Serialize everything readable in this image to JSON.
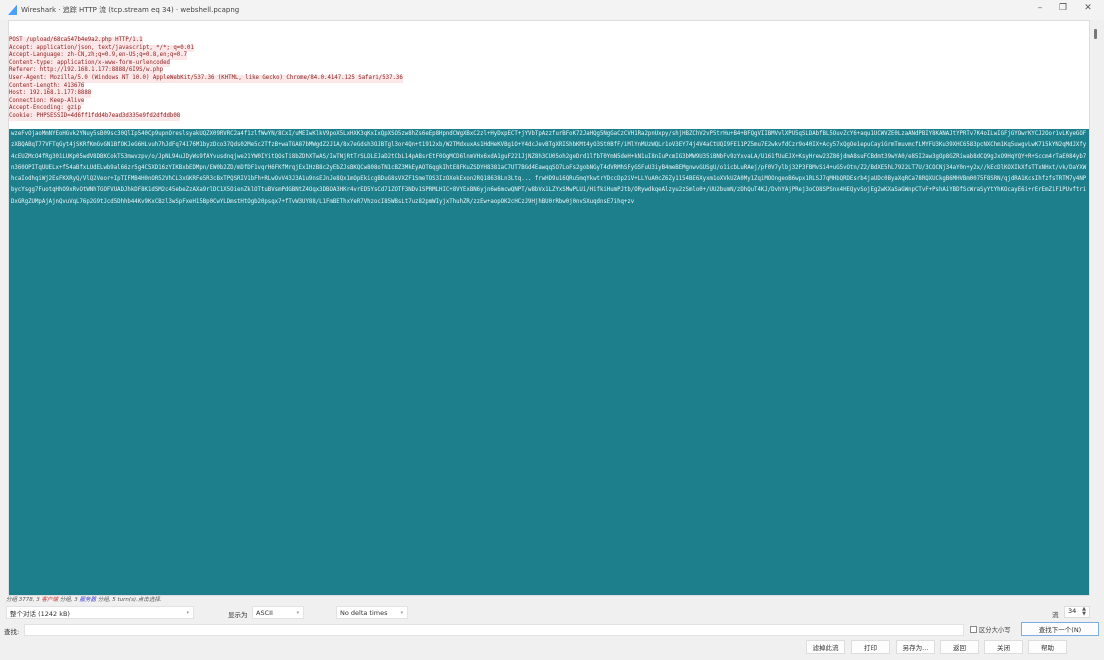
{
  "window": {
    "title": "Wireshark · 追踪 HTTP 流 (tcp.stream eq 34) · webshell.pcapng",
    "icon": "wireshark-fin-icon"
  },
  "request_headers": [
    "POST /upload/68ca547b4e9a2.php HTTP/1.1",
    "Accept: application/json, text/javascript, */*; q=0.01",
    "Accept-Language: zh-CN,zh;q=0.9,en-US;q=0.8,en;q=0.7",
    "Content-type: application/x-www-form-urlencoded",
    "Referer: http://192.168.1.177:8888/6I9S/w.php",
    "User-Agent: Mozilla/5.0 (Windows NT 10.0) AppleWebKit/537.36 (KHTML, like Gecko) Chrome/84.0.4147.125 Safari/537.36",
    "Content-Length: 413676",
    "Host: 192.168.1.177:8888",
    "Connection: Keep-Alive",
    "Accept-Encoding: gzip",
    "Cookie: PHPSESSID=4d6ff1fdd4b7ead3d335e9fd2dfddb08"
  ],
  "request_body": "wzeFvOjaoMmNYEoHGvk2YNuy5sB09sc30QlIp540Cp9upnOreslsyakUQZX09RVRC2a4f1zlfWwYN/8CxI/uMEIwKlkV9poX5LxHXK3qKxIxQpXSO5zw8hZs6eEp8HpndCWgXBxC2zl+HyDxpECT+jYVbTpAzzfurBFoK72JaHQg5NgGaCzCVH1Ra2pnUxpy/shjHBZChV2vP5trHu+B4+BFQgVIIBMVvlXPU5qSLDAbfBL5OuvZcY6+aqu1UCWVZE0LzaANdPBIY8KANAJtYPRTv7K4oILwIGFjGYOwrKYCJ2Oor1vLKyeGOFzXBQABqT77VFTqGyt4jSKRfKmGvGN1BfOKJeG6HLvuh7hJdFq74176M1byzDco37Qds02Me5c2TfzB+waTGA87bMWgdZ2J1A/8x7eGdsh3OJBTgl3or4Qn+t1912xb/W2TMdxuxAs1HdHeKVBg1O+Y4dcJevBTgXRIShbKMt4yO3St0BfF/iMlYnMUzWQLr1oV3EY74j4V4aCtUQI9FE11PZ5mu7E2wkvfdCzr9o40IX+Acy57xQgOe1epuCayiGrmTmuvmcfLMYFU3Ku39XHC6583pcNXChm1Kq5uwgvLwK715kYN2qMdJXfy4cEUZMcO4fRg301LUKp05wdV8DBKCokT53mwvzpv/o/JpNL94uJDyWs9fAYvusdnqjwe21YW0IYitQOsTi8bZDhXTwAS/IwTNjRtTrSLDLEJaD2tCbL14pABsrEtF0OgMCD6lnmVHx6xdA1guF221JjNZ8h3CU05oh2geDrd1lfbT0YmN5deH+kN1uI8nIuPcmIG3bMW9U35iBNbFv9zYxvaLA/U161fUuEJX+KsyHrew23Z86jdmA8suFCBdmt39wYA0/e85I2aw3gOp8GZRiwab8dCQ9gJxO9HqYQY+R+Sccm4rTaE084yb7n360OPITqUUELx+f54aBfxLUdELwb9al66zr5g4C5XD16zYIKBxbEDMpn/EW0b2ZD/mDfDF1vqrH6FKfMrqjExIHzB8c2yEbZJsBKQCw808oTN1cBZ3MkEyAOT6qgkIhtE8FKuZSDYH8381aC7UT7BGd4EawqqSO7LoFs2gobNGyT4dVRMhSFyGSFuU3iyB4meBEMgnwvGUSgU/o1icbLuRAej/pF0V7ylbj32P3FBMvSi4+uG5vOtn/Z2/BdXE5hL7922LT7U/3COCNj34aY0n+y2x//kEcDlKOXIkXfsTTxNHxt/vk/DaYXWhcaIodhqiWj2EsFKXRyQ/VlQ2Veor+IpTIFMB4H0nOR52VhCL3xGKRFe5R3cBxTPQSRIV1bFh+RLwOvV43J3A1u9nsEJnJe8Qx1mOpEkicgBDuG8sVXZF1SmeTOS3IzOXekExon2RQ18638Ln3Ltq... frwHD9u16QRu5mqYkwtrYDccDp2iV+LLYuA0cZ6Zy1154BE6Xyxm1oXVkUZA0My1ZqiMOOngeoB6wpx1RLSJ7qMHbQRDEsrb4jaUDc0ByaXqRCa78RQXUCkgB6MHVBm0075F8SRN/qjdRA1KcsIhfzfsTRTM7y4NPbycYsgg7FuotqHhO9xRvOtWNhTGOFVUADJhkDF8K1dSM2c45ebeZzAXa9rlDC1X5OienZklOTtuBVsmPdGBNtZ4Oqx3DBOA3HKr4vrED5YsCd71ZOTF3NDv1SPRMLHIC+8VYExBN6yjn6w6mcwQNPT/w8bVx1LZYxSMwPLUi/HifkiHumPJtb/ORywdkqeAlzyu2zSmlo0+/UU2bumN/zDhQuT4KJ/DvhYAjPRej3oCO8SPSnx4HEQyvSojEg2wKXaSaGWnpCTvF+PshAiYBDfScWraSyYtYhKOcayE6i+rErEmZiF1PUvftriDxGRgZUMpAjAjnQvuVqL76p2G9tJcd5Dhhb44Kv9KxCBzl3wSpFxeH15Bp0CwYLDmstHtOgb20psqx7+fTvW3UY88/L1FmBEThxYeR7VhzocI85WBsLt7uz82pmWIyjxThuhZR/zzEw+aopOK2cHCzJ9HjhBU0rRbw0j0nvSXuqdnsE7ihq+zv",
  "status": {
    "packets_prefix": "分组 3778,",
    "client_count": "3",
    "client_label": "客户端",
    "client_suffix": "分组,",
    "server_count": "3",
    "server_label": "服务器",
    "server_suffix": "分组,",
    "turns": "5 turn(s).点击选择."
  },
  "controls": {
    "conversation_select": "整个对话 (1242 kB)",
    "show_as_label": "显示为",
    "show_as_select": "ASCII",
    "delta_select": "No delta times",
    "stream_label": "流",
    "stream_value": "34",
    "find_label": "查找:",
    "find_value": "",
    "case_label": "区分大小写",
    "find_next": "查找下一个(N)"
  },
  "buttons": {
    "filter_out": "滤掉此流",
    "print": "打印",
    "save_as": "另存为...",
    "back": "返回",
    "close": "关闭",
    "help": "帮助"
  },
  "colors": {
    "client_text": "#8e1f1f",
    "client_bg": "#fbe7e7",
    "selection": "#1e7f8c"
  }
}
